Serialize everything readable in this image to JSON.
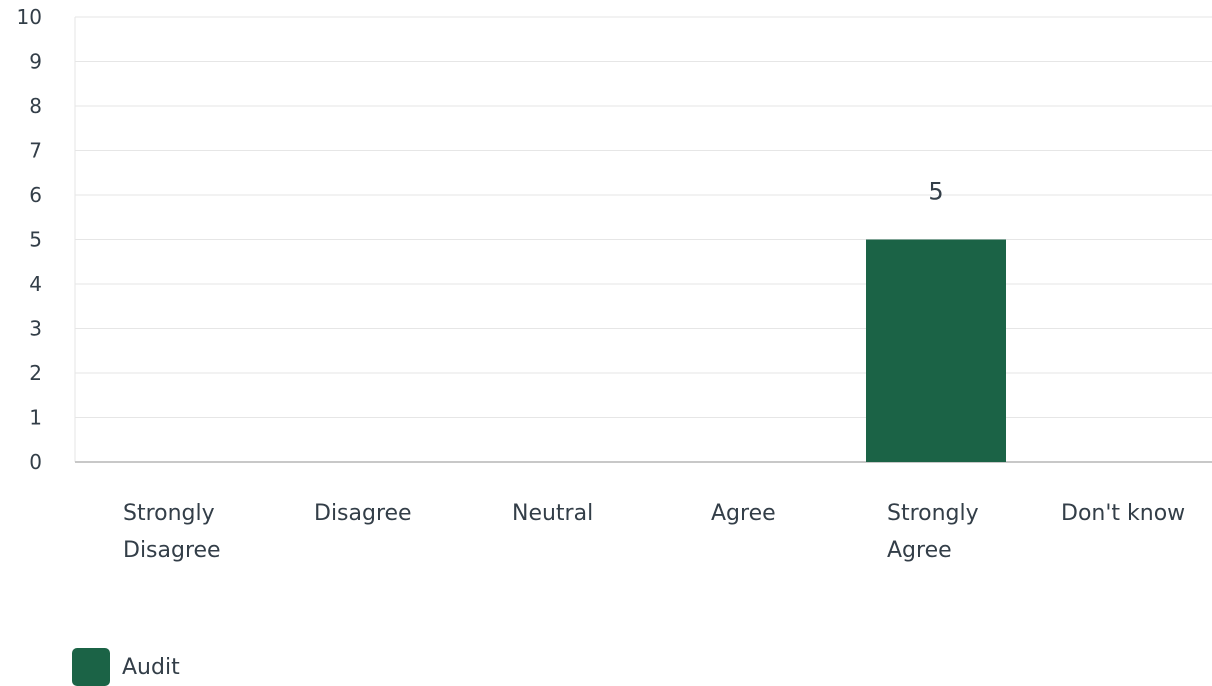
{
  "chart_data": {
    "type": "bar",
    "categories": [
      [
        "Strongly",
        "Disagree"
      ],
      [
        "Disagree"
      ],
      [
        "Neutral"
      ],
      [
        "Agree"
      ],
      [
        "Strongly",
        "Agree"
      ],
      [
        "Don't know"
      ]
    ],
    "series": [
      {
        "name": "Audit",
        "color": "#1b6346",
        "values": [
          0,
          0,
          0,
          0,
          5,
          0
        ]
      }
    ],
    "data_labels": [
      "",
      "",
      "",
      "",
      "5",
      ""
    ],
    "ylim": [
      0,
      10
    ],
    "yticks": [
      0,
      1,
      2,
      3,
      4,
      5,
      6,
      7,
      8,
      9,
      10
    ],
    "grid": true,
    "legend": "bottom-left",
    "title": "",
    "xlabel": "",
    "ylabel": ""
  },
  "legend": {
    "label": "Audit",
    "color": "#1b6346"
  }
}
